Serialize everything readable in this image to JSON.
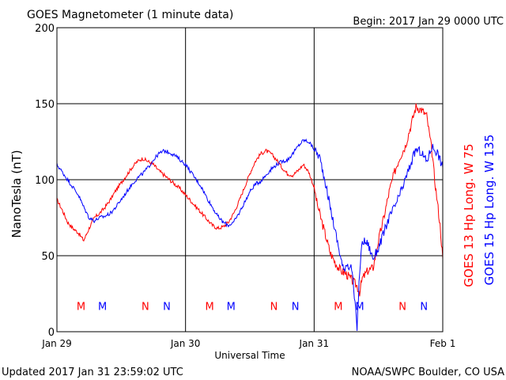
{
  "header": {
    "title": "GOES Magnetometer (1 minute data)",
    "begin": "Begin:  2017 Jan 29 0000 UTC"
  },
  "footer": {
    "updated": "Updated 2017 Jan 31 23:59:02 UTC",
    "source": "NOAA/SWPC Boulder, CO USA"
  },
  "chart_data": {
    "type": "line",
    "title": "GOES Magnetometer (1 minute data)",
    "xlabel": "Universal Time",
    "ylabel": "NanoTesla (nT)",
    "xlim": [
      0,
      72
    ],
    "x_unit": "hours from 2017 Jan 29 0000 UTC",
    "x_ticks": [
      {
        "x": 0,
        "label": "Jan 29"
      },
      {
        "x": 24,
        "label": "Jan 30"
      },
      {
        "x": 48,
        "label": "Jan 31"
      },
      {
        "x": 72,
        "label": "Feb 1"
      }
    ],
    "ylim": [
      0,
      200
    ],
    "y_ticks": [
      0,
      50,
      100,
      150,
      200
    ],
    "grid": true,
    "series": [
      {
        "name": "GOES 13 Hp  Long. W 75",
        "color": "#ff0000",
        "points": [
          [
            0,
            87
          ],
          [
            1,
            80
          ],
          [
            2,
            72
          ],
          [
            3,
            68
          ],
          [
            4,
            65
          ],
          [
            5,
            60
          ],
          [
            6,
            68
          ],
          [
            7,
            75
          ],
          [
            8,
            78
          ],
          [
            9,
            82
          ],
          [
            10,
            87
          ],
          [
            11,
            93
          ],
          [
            12,
            98
          ],
          [
            13,
            103
          ],
          [
            14,
            108
          ],
          [
            15,
            112
          ],
          [
            16,
            114
          ],
          [
            17,
            112
          ],
          [
            18,
            110
          ],
          [
            19,
            106
          ],
          [
            20,
            103
          ],
          [
            21,
            100
          ],
          [
            22,
            97
          ],
          [
            23,
            94
          ],
          [
            24,
            90
          ],
          [
            25,
            86
          ],
          [
            26,
            82
          ],
          [
            27,
            78
          ],
          [
            28,
            74
          ],
          [
            29,
            70
          ],
          [
            30,
            68
          ],
          [
            31,
            69
          ],
          [
            32,
            72
          ],
          [
            33,
            78
          ],
          [
            34,
            86
          ],
          [
            35,
            95
          ],
          [
            36,
            104
          ],
          [
            37,
            112
          ],
          [
            38,
            117
          ],
          [
            39,
            119
          ],
          [
            40,
            117
          ],
          [
            41,
            113
          ],
          [
            42,
            108
          ],
          [
            43,
            104
          ],
          [
            44,
            103
          ],
          [
            45,
            106
          ],
          [
            46,
            110
          ],
          [
            47,
            105
          ],
          [
            48,
            95
          ],
          [
            48.5,
            85
          ],
          [
            49,
            78
          ],
          [
            50,
            65
          ],
          [
            51,
            52
          ],
          [
            52,
            45
          ],
          [
            53,
            40
          ],
          [
            54,
            38
          ],
          [
            55,
            34
          ],
          [
            56,
            30
          ],
          [
            56.5,
            26
          ],
          [
            57,
            35
          ],
          [
            58,
            40
          ],
          [
            59,
            42
          ],
          [
            60,
            60
          ],
          [
            61,
            75
          ],
          [
            62,
            92
          ],
          [
            63,
            105
          ],
          [
            64,
            115
          ],
          [
            65,
            122
          ],
          [
            66,
            135
          ],
          [
            67,
            148
          ],
          [
            68,
            146
          ],
          [
            69,
            142
          ],
          [
            70,
            118
          ],
          [
            70.5,
            100
          ],
          [
            71,
            85
          ],
          [
            71.5,
            70
          ],
          [
            72,
            48
          ]
        ]
      },
      {
        "name": "GOES 15 Hp  Long. W 135",
        "color": "#0000ff",
        "points": [
          [
            0,
            110
          ],
          [
            1,
            105
          ],
          [
            2,
            100
          ],
          [
            3,
            95
          ],
          [
            4,
            90
          ],
          [
            5,
            82
          ],
          [
            6,
            75
          ],
          [
            7,
            73
          ],
          [
            8,
            75
          ],
          [
            9,
            76
          ],
          [
            10,
            78
          ],
          [
            11,
            82
          ],
          [
            12,
            87
          ],
          [
            13,
            92
          ],
          [
            14,
            97
          ],
          [
            15,
            101
          ],
          [
            16,
            104
          ],
          [
            17,
            108
          ],
          [
            18,
            113
          ],
          [
            19,
            117
          ],
          [
            20,
            119
          ],
          [
            21,
            118
          ],
          [
            22,
            116
          ],
          [
            23,
            113
          ],
          [
            24,
            110
          ],
          [
            25,
            105
          ],
          [
            26,
            100
          ],
          [
            27,
            95
          ],
          [
            28,
            88
          ],
          [
            29,
            82
          ],
          [
            30,
            76
          ],
          [
            31,
            72
          ],
          [
            32,
            70
          ],
          [
            33,
            72
          ],
          [
            34,
            78
          ],
          [
            35,
            85
          ],
          [
            36,
            92
          ],
          [
            37,
            97
          ],
          [
            38,
            99
          ],
          [
            39,
            103
          ],
          [
            40,
            107
          ],
          [
            41,
            110
          ],
          [
            42,
            112
          ],
          [
            43,
            113
          ],
          [
            44,
            117
          ],
          [
            45,
            122
          ],
          [
            46,
            126
          ],
          [
            47,
            125
          ],
          [
            48,
            120
          ],
          [
            49,
            115
          ],
          [
            50,
            100
          ],
          [
            51,
            82
          ],
          [
            52,
            65
          ],
          [
            53,
            48
          ],
          [
            53.5,
            40
          ],
          [
            54,
            45
          ],
          [
            55,
            42
          ],
          [
            56,
            3
          ],
          [
            56.5,
            40
          ],
          [
            57,
            60
          ],
          [
            58,
            58
          ],
          [
            59,
            48
          ],
          [
            60,
            55
          ],
          [
            61,
            65
          ],
          [
            62,
            75
          ],
          [
            63,
            82
          ],
          [
            64,
            90
          ],
          [
            65,
            100
          ],
          [
            66,
            110
          ],
          [
            67,
            120
          ],
          [
            68,
            118
          ],
          [
            69,
            112
          ],
          [
            70,
            122
          ],
          [
            71,
            118
          ],
          [
            72,
            108
          ]
        ]
      }
    ],
    "markers": [
      {
        "label": "M",
        "x": 4.5,
        "color": "#ff0000"
      },
      {
        "label": "M",
        "x": 8.5,
        "color": "#0000ff"
      },
      {
        "label": "N",
        "x": 16.5,
        "color": "#ff0000"
      },
      {
        "label": "N",
        "x": 20.5,
        "color": "#0000ff"
      },
      {
        "label": "M",
        "x": 28.5,
        "color": "#ff0000"
      },
      {
        "label": "M",
        "x": 32.5,
        "color": "#0000ff"
      },
      {
        "label": "N",
        "x": 40.5,
        "color": "#ff0000"
      },
      {
        "label": "N",
        "x": 44.5,
        "color": "#0000ff"
      },
      {
        "label": "M",
        "x": 52.5,
        "color": "#ff0000"
      },
      {
        "label": "M",
        "x": 56.5,
        "color": "#0000ff"
      },
      {
        "label": "N",
        "x": 64.5,
        "color": "#ff0000"
      },
      {
        "label": "N",
        "x": 68.5,
        "color": "#0000ff"
      }
    ],
    "marker_y": 17
  }
}
